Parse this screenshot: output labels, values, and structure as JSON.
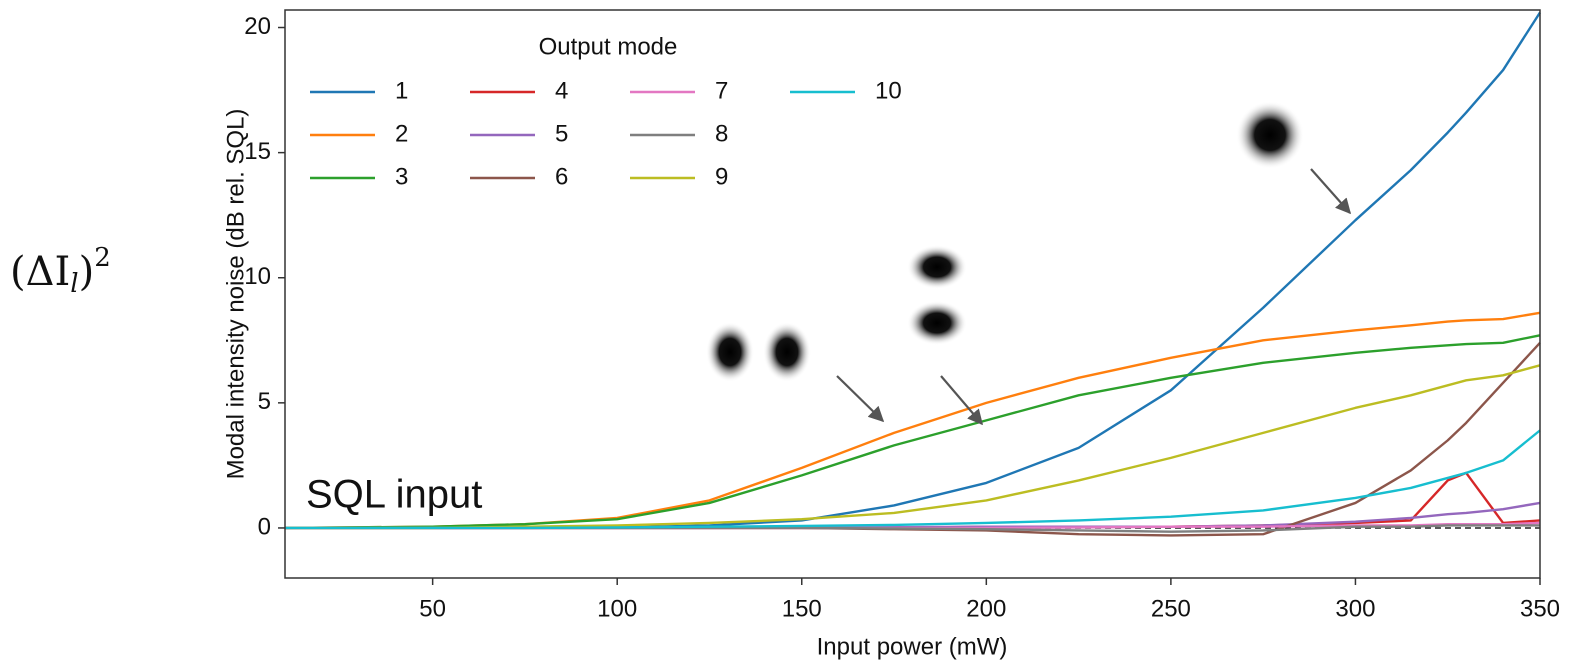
{
  "chart_data": {
    "type": "line",
    "x_label": "Input power (mW)",
    "y_label": "Modal intensity noise (dB rel. SQL)",
    "side_label": [
      "(ΔI",
      "l",
      ")",
      "2"
    ],
    "annotation": "SQL input",
    "legend_title": "Output mode",
    "xlim": [
      10,
      350
    ],
    "ylim": [
      -2,
      20.7
    ],
    "xticks": [
      50,
      100,
      150,
      200,
      250,
      300,
      350
    ],
    "yticks": [
      0,
      5,
      10,
      15,
      20
    ],
    "reference_line": 0,
    "x": [
      10,
      50,
      75,
      100,
      125,
      150,
      175,
      200,
      225,
      250,
      275,
      300,
      315,
      325,
      330,
      340,
      350
    ],
    "series": [
      {
        "name": "1",
        "color": "#1f77b4",
        "values": [
          0,
          0,
          0,
          0.02,
          0.1,
          0.3,
          0.9,
          1.8,
          3.2,
          5.5,
          8.8,
          12.3,
          14.3,
          15.8,
          16.6,
          18.3,
          20.6
        ]
      },
      {
        "name": "2",
        "color": "#ff7f0e",
        "values": [
          0,
          0.05,
          0.15,
          0.4,
          1.1,
          2.4,
          3.8,
          5.0,
          6.0,
          6.8,
          7.5,
          7.9,
          8.1,
          8.25,
          8.3,
          8.35,
          8.6
        ]
      },
      {
        "name": "3",
        "color": "#2ca02c",
        "values": [
          0,
          0.05,
          0.15,
          0.35,
          1.0,
          2.1,
          3.3,
          4.3,
          5.3,
          6.0,
          6.6,
          7.0,
          7.2,
          7.3,
          7.35,
          7.4,
          7.7
        ]
      },
      {
        "name": "4",
        "color": "#d62728",
        "values": [
          0,
          0,
          0,
          0,
          0,
          0,
          0,
          0.05,
          0.05,
          0.05,
          0.1,
          0.2,
          0.3,
          1.9,
          2.2,
          0.2,
          0.3
        ]
      },
      {
        "name": "5",
        "color": "#9467bd",
        "values": [
          0,
          0,
          0,
          0,
          0,
          0.02,
          0.03,
          0.05,
          0.05,
          0.05,
          0.1,
          0.25,
          0.4,
          0.55,
          0.6,
          0.75,
          1.0
        ]
      },
      {
        "name": "6",
        "color": "#8c564b",
        "values": [
          0,
          0,
          0,
          0,
          0,
          0,
          -0.05,
          -0.1,
          -0.25,
          -0.3,
          -0.25,
          1.0,
          2.3,
          3.5,
          4.2,
          5.8,
          7.4
        ]
      },
      {
        "name": "7",
        "color": "#e377c2",
        "values": [
          0,
          0,
          0,
          0,
          0,
          0,
          0,
          0,
          0.02,
          0.05,
          0.05,
          0.1,
          0.1,
          0.15,
          0.15,
          0.15,
          0.2
        ]
      },
      {
        "name": "8",
        "color": "#7f7f7f",
        "values": [
          0,
          0,
          0,
          0,
          0,
          0,
          -0.02,
          -0.05,
          -0.1,
          -0.15,
          -0.1,
          0.05,
          0.05,
          0.1,
          0.1,
          0.1,
          0.1
        ]
      },
      {
        "name": "9",
        "color": "#bcbd22",
        "values": [
          0,
          0,
          0.05,
          0.1,
          0.2,
          0.35,
          0.6,
          1.1,
          1.9,
          2.8,
          3.8,
          4.8,
          5.3,
          5.7,
          5.9,
          6.1,
          6.5
        ]
      },
      {
        "name": "10",
        "color": "#17becf",
        "values": [
          0,
          0,
          0,
          0.02,
          0.05,
          0.08,
          0.12,
          0.2,
          0.3,
          0.45,
          0.7,
          1.2,
          1.6,
          2.0,
          2.2,
          2.7,
          3.9
        ]
      }
    ]
  }
}
